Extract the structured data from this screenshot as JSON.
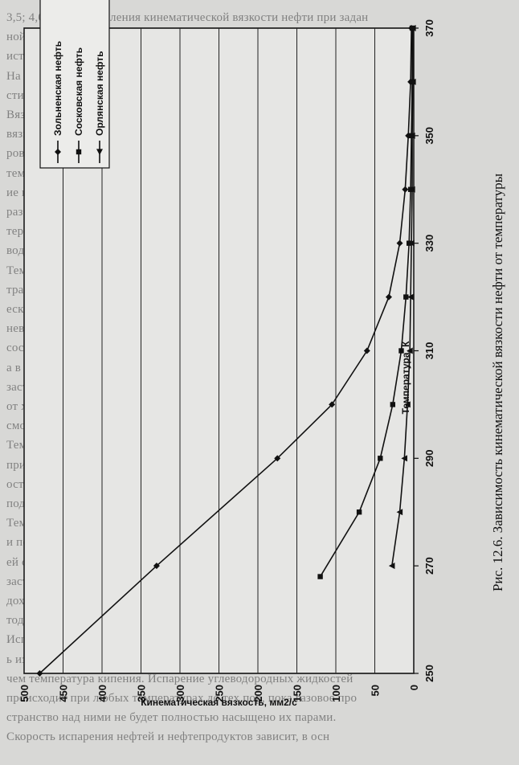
{
  "background_text": [
    "3,5; 4,0. Для определения кинематической вязкости нефти при задан",
    "ной температуре выбирают вискозиметр таким расчетом, чтобы врем",
    "истечения нефти было не менее 15 с.",
    "На рис. 12.6 приведена вискограмма нефтей Кыштинской южно",
    "сти. Как видно зависимость от Т имеет экспоненциальный характер",
    "Вязкость нефтей России при 20 °С от 1.3-20.0 3 до превышает",
    "вязкость нефти повышенной вязкости определяют способы транспорти",
    "ровки нефти и нефтепродуктов. Маловязкие нефти перекачивают при",
    "температуре окружающей среды без предварительной обработки, вязк",
    "ие нефти перекачивают одним из следующих способов: после",
    "разбавления маловязкими, после предварительной термообработки",
    "термически обработанные, с подогревом, при перекачке с",
    "водяным подслоем",
    "Температура застывания имеет существенное значение для",
    "транспортирования нефти, так как по мере приближения к ней фактич",
    "еской температуры жидкости затрудняется или становится",
    "невозможным ее перемещение. Переход нефти из одного агрегатного",
    "состояния в другое совершается при одной постоянной температуре",
    "а в интервале, иногда значительном. Поэтому температура",
    "застывания является условной величиной. Она зависит главным образом",
    "от химического состава нефти и от содержания в ней парафина и",
    "смол.",
    "Температурой застывания нефти принято считать температуру",
    "при которой нефть, налитая в пробирку стандартных размеров",
    "остается неподвижной в течение одной минуты при наклоне пробирки",
    "под углом 45 °.",
    "Температура застывания малоновых нефтей составляет до -23",
    "и поэтому их можно транспортировать при температуре окружающ",
    "ей среды. С увеличением содержания парафина температура",
    "застывания повышается. Для нефтей полуострова Мангышлак она",
    "доходит до +30 °С. Их можно перекачивать только специальными ме",
    "тодами.",
    "Испаряемость - свойство нефтей и нефтепродуктов переходит",
    "ь из жидкого состояния в газообразное при температуре меньшей",
    "чем температура кипения. Испарение углеводородных жидкостей",
    "происходит при любых температурах до тех пор, пока газовое про",
    "странство над ними не будет полностью насыщено их парами.",
    "Скорость испарения нефтей и нефтепродуктов зависит, в осн"
  ],
  "caption": "Рис. 12.6. Зависимость кинематической вязкости нефти от температуры",
  "chart_data": {
    "type": "line",
    "title": "",
    "xlabel": "Температура, К",
    "ylabel": "Кинематическая вязкость, мм2/с",
    "xlim": [
      250,
      370
    ],
    "ylim": [
      0,
      500
    ],
    "x_ticks": [
      250,
      270,
      290,
      310,
      330,
      350,
      370
    ],
    "y_ticks": [
      0,
      50,
      100,
      150,
      200,
      250,
      300,
      350,
      400,
      450,
      500
    ],
    "grid": true,
    "legend_position": "top-left",
    "series": [
      {
        "name": "Зольненская нефть",
        "marker": "diamond",
        "color": "#111111",
        "points": [
          [
            250,
            480
          ],
          [
            270,
            330
          ],
          [
            290,
            175
          ],
          [
            300,
            105
          ],
          [
            310,
            60
          ],
          [
            320,
            32
          ],
          [
            330,
            18
          ],
          [
            340,
            11
          ],
          [
            350,
            7
          ],
          [
            360,
            4
          ],
          [
            370,
            3
          ]
        ]
      },
      {
        "name": "Сосковская нефть",
        "marker": "square",
        "color": "#111111",
        "points": [
          [
            268,
            120
          ],
          [
            280,
            70
          ],
          [
            290,
            43
          ],
          [
            300,
            27
          ],
          [
            310,
            16
          ],
          [
            320,
            10
          ],
          [
            330,
            6
          ],
          [
            340,
            4
          ],
          [
            350,
            3
          ],
          [
            360,
            2
          ],
          [
            370,
            2
          ]
        ]
      },
      {
        "name": "Орлянская нефть",
        "marker": "triangle",
        "color": "#111111",
        "points": [
          [
            270,
            28
          ],
          [
            280,
            18
          ],
          [
            290,
            12
          ],
          [
            300,
            8
          ],
          [
            310,
            5
          ],
          [
            320,
            4
          ],
          [
            330,
            3
          ],
          [
            340,
            2
          ],
          [
            350,
            2
          ],
          [
            360,
            1
          ],
          [
            370,
            1
          ]
        ]
      }
    ]
  }
}
